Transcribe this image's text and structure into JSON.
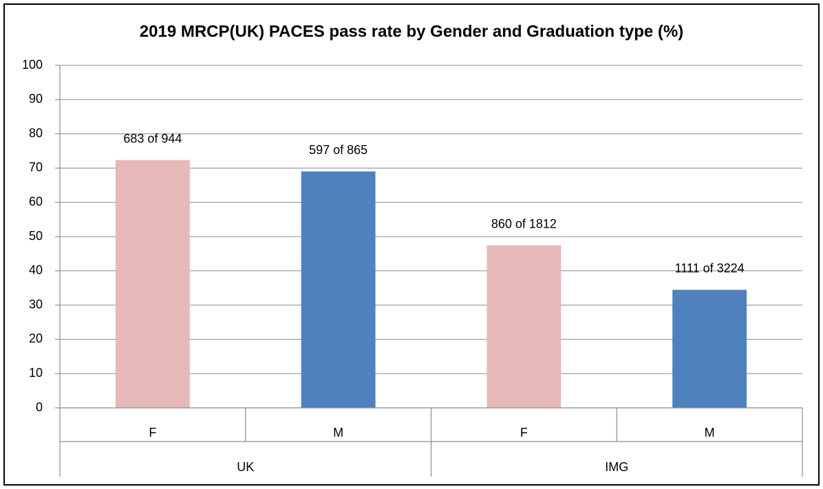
{
  "chart_data": {
    "type": "bar",
    "title": "2019 MRCP(UK) PACES pass rate by Gender and Graduation type  (%)",
    "categories": [
      "F",
      "M",
      "F",
      "M"
    ],
    "groups": [
      "UK",
      "IMG"
    ],
    "values": [
      72.35,
      69.02,
      47.46,
      34.46
    ],
    "value_labels": [
      "683 of 944",
      "597 of 865",
      "860 of 1812",
      "1111 of 3224"
    ],
    "colors": [
      "#e6b8b7",
      "#4f81bd",
      "#e6b8b7",
      "#4f81bd"
    ],
    "ylim": [
      0,
      100
    ],
    "yticks": [
      0,
      10,
      20,
      30,
      40,
      50,
      60,
      70,
      80,
      90,
      100
    ],
    "grid": true
  }
}
